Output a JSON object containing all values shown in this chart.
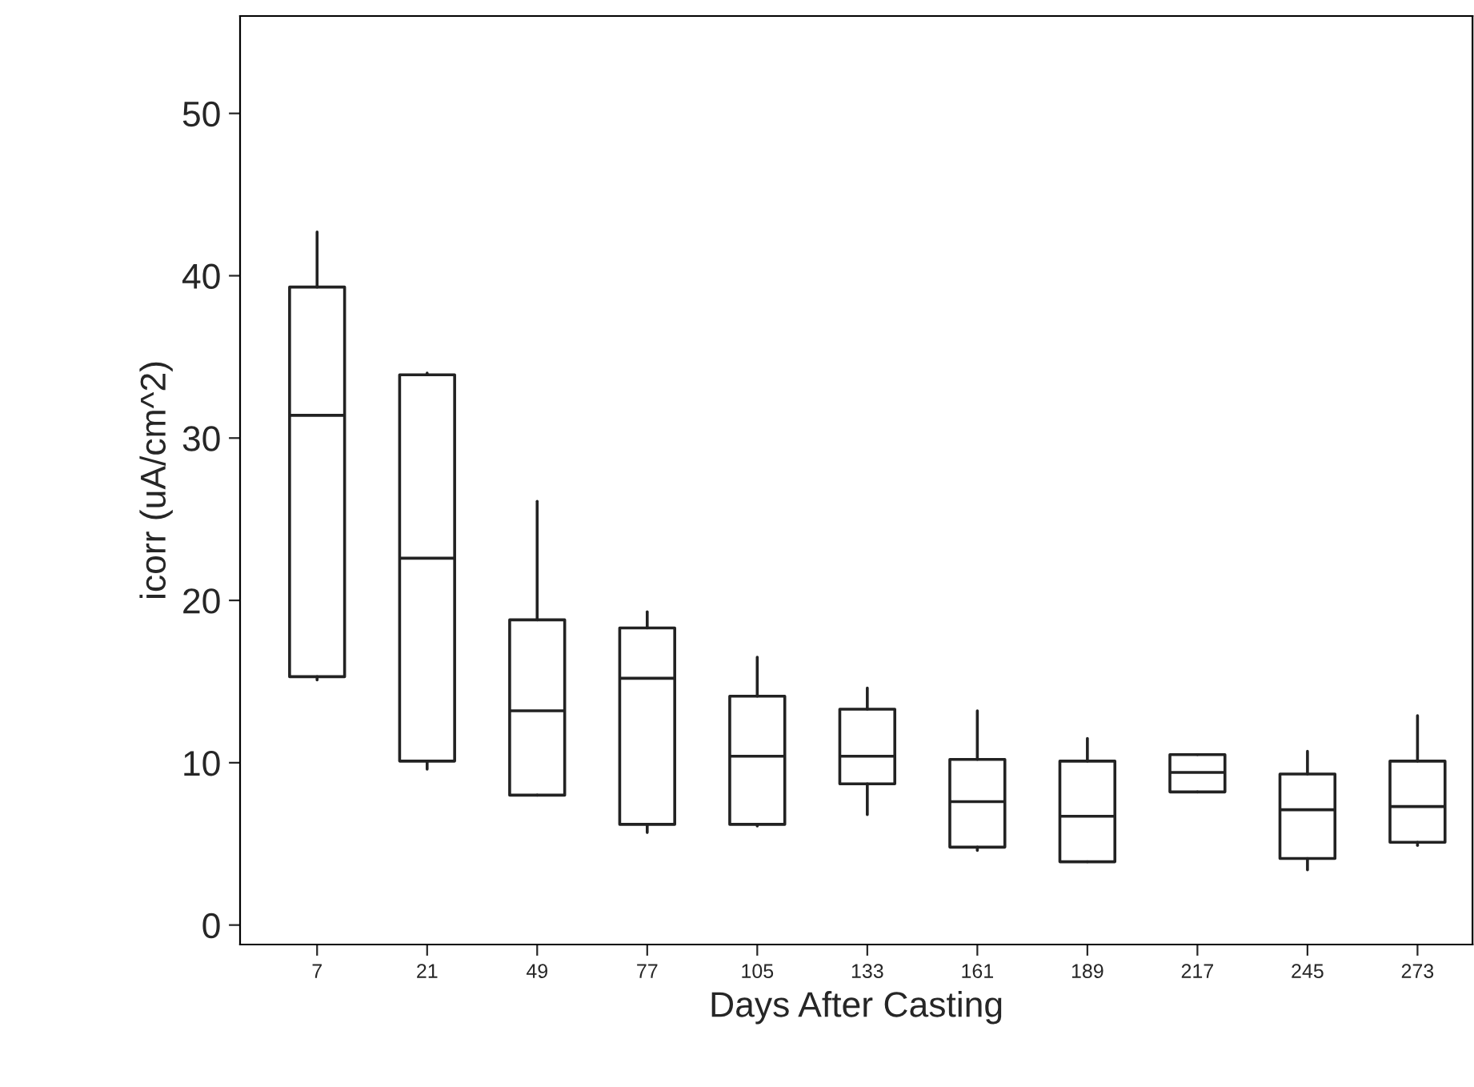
{
  "chart_data": {
    "type": "box",
    "xlabel": "Days After Casting",
    "ylabel": "icorr (uA/cm^2)",
    "categories": [
      "7",
      "21",
      "49",
      "77",
      "105",
      "133",
      "161",
      "189",
      "217",
      "245",
      "273"
    ],
    "boxes": [
      {
        "low": 15.1,
        "q1": 15.3,
        "median": 31.4,
        "q3": 39.3,
        "high": 42.7
      },
      {
        "low": 9.6,
        "q1": 10.1,
        "median": 22.6,
        "q3": 33.9,
        "high": 34.0
      },
      {
        "low": 8.0,
        "q1": 8.0,
        "median": 13.2,
        "q3": 18.8,
        "high": 26.1
      },
      {
        "low": 5.7,
        "q1": 6.2,
        "median": 15.2,
        "q3": 18.3,
        "high": 19.3
      },
      {
        "low": 6.1,
        "q1": 6.2,
        "median": 10.4,
        "q3": 14.1,
        "high": 16.5
      },
      {
        "low": 6.8,
        "q1": 8.7,
        "median": 10.4,
        "q3": 13.3,
        "high": 14.6
      },
      {
        "low": 4.6,
        "q1": 4.8,
        "median": 7.6,
        "q3": 10.2,
        "high": 13.2
      },
      {
        "low": 3.9,
        "q1": 3.9,
        "median": 6.7,
        "q3": 10.1,
        "high": 11.5
      },
      {
        "low": 8.2,
        "q1": 8.2,
        "median": 9.4,
        "q3": 10.5,
        "high": 10.5
      },
      {
        "low": 3.4,
        "q1": 4.1,
        "median": 7.1,
        "q3": 9.3,
        "high": 10.7
      },
      {
        "low": 4.9,
        "q1": 5.1,
        "median": 7.3,
        "q3": 10.1,
        "high": 12.9
      }
    ],
    "ylim": [
      -1.2,
      56
    ],
    "yticks": [
      0,
      10,
      20,
      30,
      40,
      50
    ],
    "grid": false
  }
}
